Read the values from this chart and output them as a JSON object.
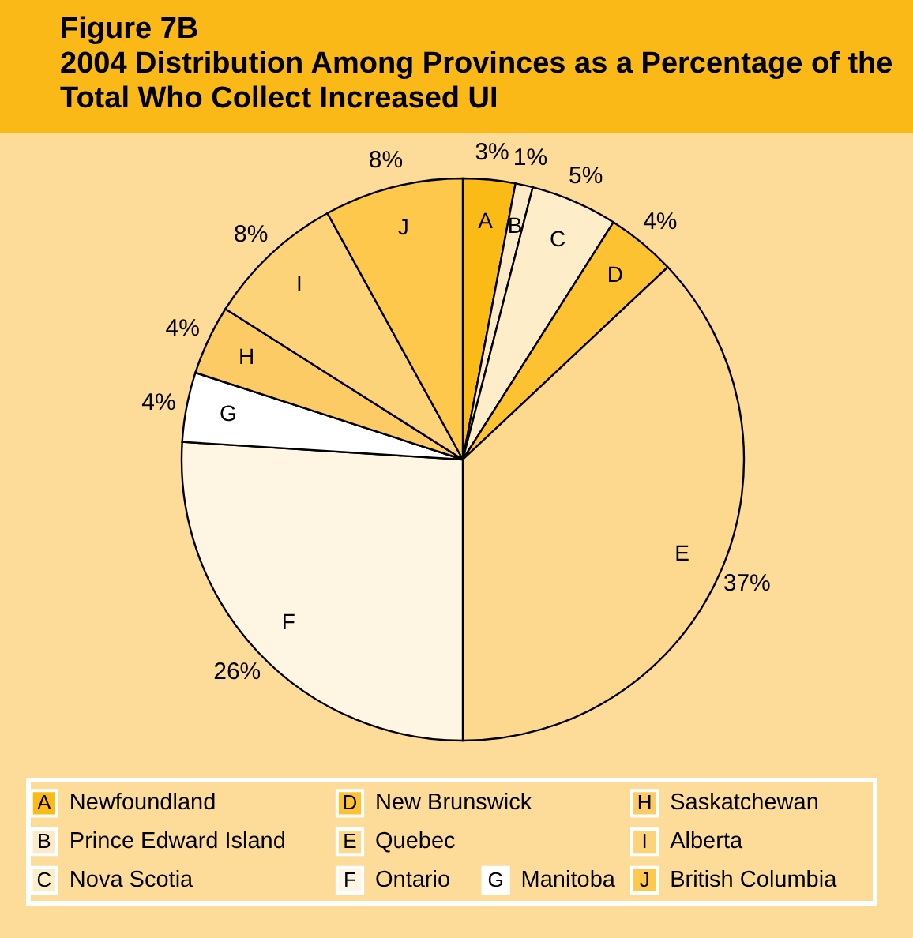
{
  "chart_data": {
    "type": "pie",
    "title": "Figure 7B",
    "subtitle": "2004 Distribution Among Provinces as a Percentage of the Total Who Collect Increased UI",
    "categories": [
      "Newfoundland",
      "Prince Edward Island",
      "Nova Scotia",
      "New Brunswick",
      "Quebec",
      "Ontario",
      "Manitoba",
      "Saskatchewan",
      "Alberta",
      "British Columbia"
    ],
    "values": [
      3,
      1,
      5,
      4,
      37,
      26,
      4,
      4,
      8,
      8
    ],
    "value_labels": [
      "3%",
      "1%",
      "5%",
      "4%",
      "37%",
      "26%",
      "4%",
      "4%",
      "8%",
      "8%"
    ],
    "colors": [
      "#fbbb17",
      "#fdebc8",
      "#feedc9",
      "#fcc232",
      "#fdd990",
      "#fef5e2",
      "#ffffff",
      "#fdcb66",
      "#fdd37a",
      "#fdc84c"
    ],
    "annotations": [
      "A",
      "B",
      "C",
      "D",
      "E",
      "F",
      "G",
      "H",
      "I",
      "J"
    ],
    "legend": "bottom"
  }
}
